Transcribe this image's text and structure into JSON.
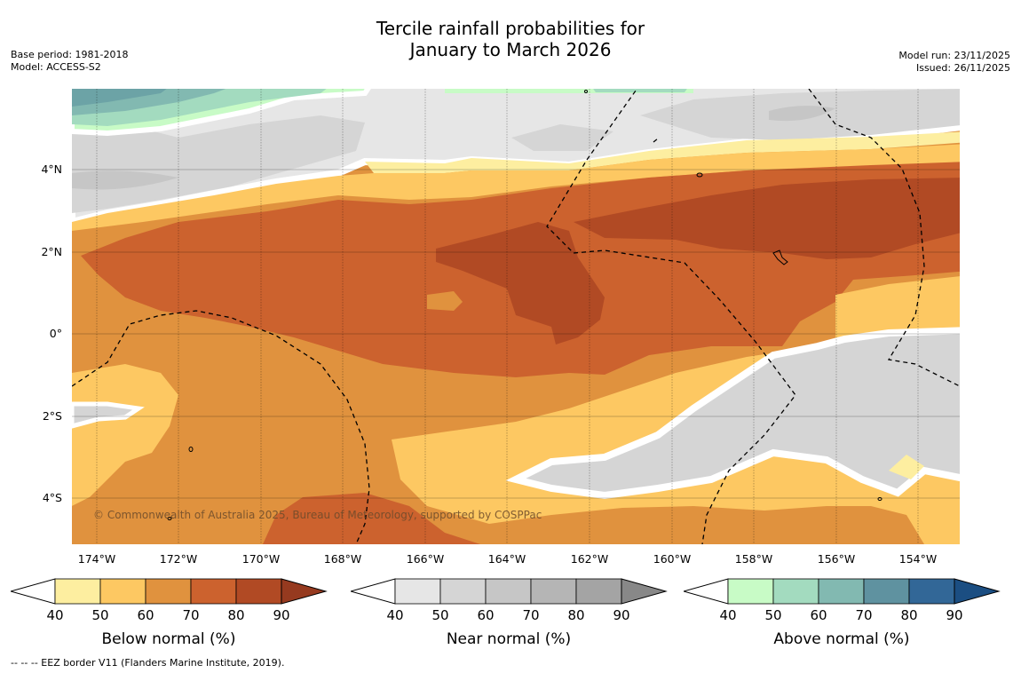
{
  "title_line1": "Tercile rainfall probabilities for",
  "title_line2": "January to March 2026",
  "base_period": "Base period: 1981-2018",
  "model": "Model: ACCESS-S2",
  "model_run": "Model run: 23/11/2025",
  "issued": "Issued: 26/11/2025",
  "copyright": "© Commonwealth of Australia 2025, Bureau of Meteorology, supported by COSPPac",
  "footnote": "--  --  -- EEZ border V11 (Flanders Marine Institute, 2019).",
  "lat_labels": [
    "4°N",
    "2°N",
    "0°",
    "2°S",
    "4°S"
  ],
  "lon_labels": [
    "174°W",
    "172°W",
    "170°W",
    "168°W",
    "166°W",
    "164°W",
    "162°W",
    "160°W",
    "158°W",
    "156°W",
    "154°W"
  ],
  "colorbars": [
    {
      "title": "Below normal (%)",
      "ticks": [
        "40",
        "50",
        "60",
        "70",
        "80",
        "90"
      ],
      "colors": [
        "#fdeea0",
        "#fdc862",
        "#e0923e",
        "#cc622e",
        "#b14a24"
      ],
      "over": "#963a1f"
    },
    {
      "title": "Near normal (%)",
      "ticks": [
        "40",
        "50",
        "60",
        "70",
        "80",
        "90"
      ],
      "colors": [
        "#e6e6e6",
        "#d5d5d5",
        "#c6c6c6",
        "#b5b5b5",
        "#a4a4a4"
      ],
      "over": "#888888"
    },
    {
      "title": "Above normal (%)",
      "ticks": [
        "40",
        "50",
        "60",
        "70",
        "80",
        "90"
      ],
      "colors": [
        "#c8fbc6",
        "#a3dbbf",
        "#82b9b1",
        "#5f92a0",
        "#326797"
      ],
      "over": "#1b4e82"
    }
  ],
  "palette": {
    "below_40": "#fdeea0",
    "below_50": "#fdc862",
    "below_60": "#e0923e",
    "below_70": "#cc622e",
    "below_80": "#b14a24",
    "near_40": "#e6e6e6",
    "near_50": "#d5d5d5",
    "near_60": "#c6c6c6",
    "above_40": "#c8fbc6",
    "above_50": "#a3dbbf",
    "above_60": "#82b9b1",
    "above_70": "#6ca3a6"
  }
}
